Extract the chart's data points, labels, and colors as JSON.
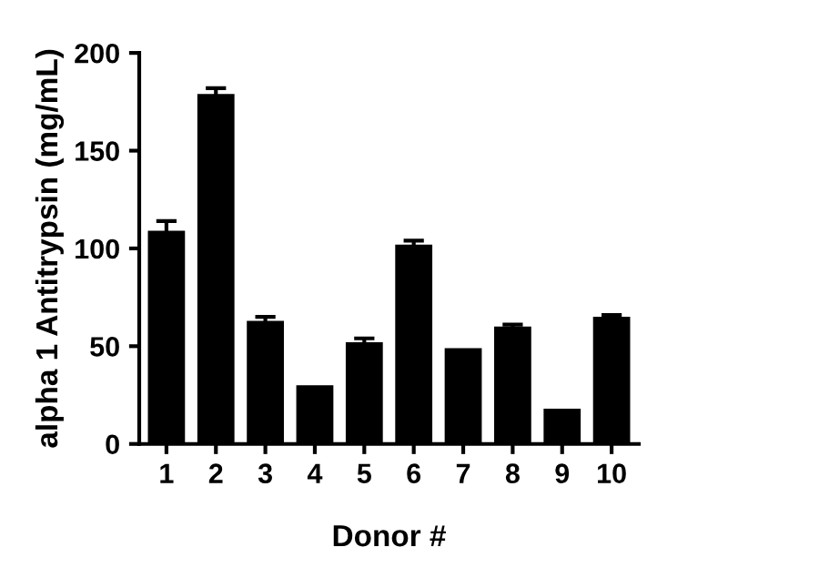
{
  "chart_data": {
    "type": "bar",
    "xlabel": "Donor #",
    "ylabel": "alpha 1 Antitrypsin (mg/mL)",
    "categories": [
      "1",
      "2",
      "3",
      "4",
      "5",
      "6",
      "7",
      "8",
      "9",
      "10"
    ],
    "values": [
      109,
      179,
      63,
      30,
      52,
      102,
      49,
      60,
      18,
      65
    ],
    "errors": [
      5,
      3,
      2,
      null,
      2,
      2,
      null,
      1,
      null,
      1
    ],
    "color": "#000000",
    "ylim": [
      0,
      200
    ],
    "yticks": [
      0,
      50,
      100,
      150,
      200
    ],
    "grid": false,
    "legend": false
  }
}
